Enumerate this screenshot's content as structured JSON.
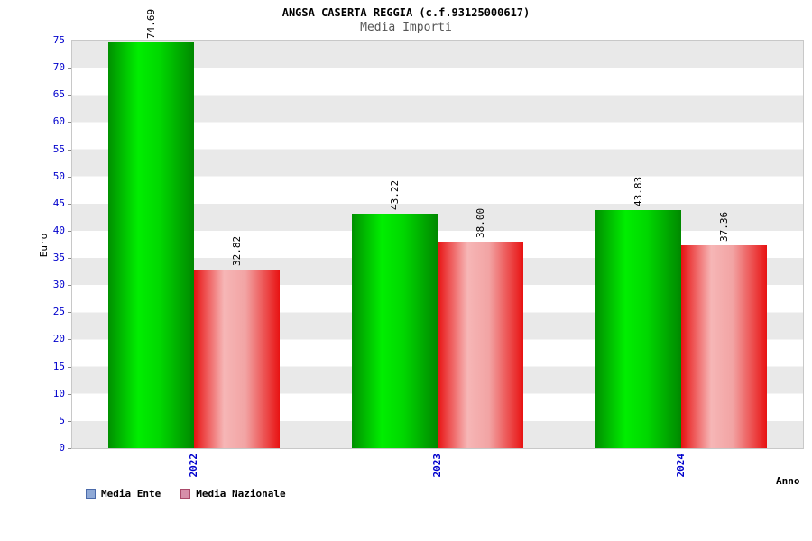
{
  "chart_data": {
    "type": "bar",
    "title": "ANGSA CASERTA REGGIA (c.f.93125000617)",
    "subtitle": "Media Importi",
    "xlabel": "Anno",
    "ylabel": "Euro",
    "categories": [
      "2022",
      "2023",
      "2024"
    ],
    "series": [
      {
        "name": "Media Ente",
        "values": [
          74.69,
          43.22,
          43.83
        ],
        "bar_gradient": [
          "#009000",
          "#00ee00",
          "#00d800",
          "#008800"
        ],
        "legend_fill": "#8fa9d6",
        "legend_border": "#4a6aaa"
      },
      {
        "name": "Media Nazionale",
        "values": [
          32.82,
          38.0,
          37.36
        ],
        "bar_gradient": [
          "#e81212",
          "#f6b6b6",
          "#f2a4a4",
          "#e81212"
        ],
        "legend_fill": "#d68fa9",
        "legend_border": "#aa4a6a"
      }
    ],
    "ylim": [
      0,
      75
    ],
    "ytick_step": 5,
    "value_label_format": "0.00",
    "tick_color": "#0000cc",
    "legend_position": "bottom",
    "grid": "alternating-horizontal-bands",
    "band_colors": [
      "#e9e9e9",
      "#ffffff"
    ]
  }
}
